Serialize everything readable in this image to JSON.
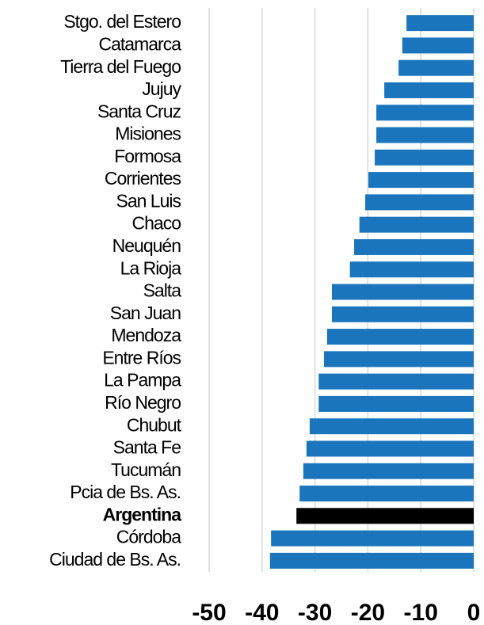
{
  "chart_data": {
    "type": "barh",
    "categories": [
      "Stgo. del Estero",
      "Catamarca",
      "Tierra del Fuego",
      "Jujuy",
      "Santa Cruz",
      "Misiones",
      "Formosa",
      "Corrientes",
      "San Luis",
      "Chaco",
      "Neuquén",
      "La Rioja",
      "Salta",
      "San Juan",
      "Mendoza",
      "Entre Ríos",
      "La Pampa",
      "Río Negro",
      "Chubut",
      "Santa Fe",
      "Tucumán",
      "Pcia de Bs. As.",
      "Argentina",
      "Córdoba",
      "Ciudad de Bs. As."
    ],
    "values": [
      -12.7,
      -13.5,
      -14.2,
      -16.9,
      -18.4,
      -18.4,
      -18.7,
      -19.9,
      -20.5,
      -21.6,
      -22.6,
      -23.4,
      -26.8,
      -26.8,
      -27.7,
      -28.3,
      -29.3,
      -29.3,
      -31.0,
      -31.6,
      -32.2,
      -32.9,
      -33.5,
      -38.3,
      -38.5
    ],
    "colors": [
      "#1b75bc",
      "#1b75bc",
      "#1b75bc",
      "#1b75bc",
      "#1b75bc",
      "#1b75bc",
      "#1b75bc",
      "#1b75bc",
      "#1b75bc",
      "#1b75bc",
      "#1b75bc",
      "#1b75bc",
      "#1b75bc",
      "#1b75bc",
      "#1b75bc",
      "#1b75bc",
      "#1b75bc",
      "#1b75bc",
      "#1b75bc",
      "#1b75bc",
      "#1b75bc",
      "#1b75bc",
      "#000000",
      "#1b75bc",
      "#1b75bc"
    ],
    "highlight_color": "#000000",
    "xlim": [
      -50,
      0
    ],
    "xticks": [
      -50,
      -40,
      -30,
      -20,
      -10,
      0
    ],
    "grid": true
  }
}
